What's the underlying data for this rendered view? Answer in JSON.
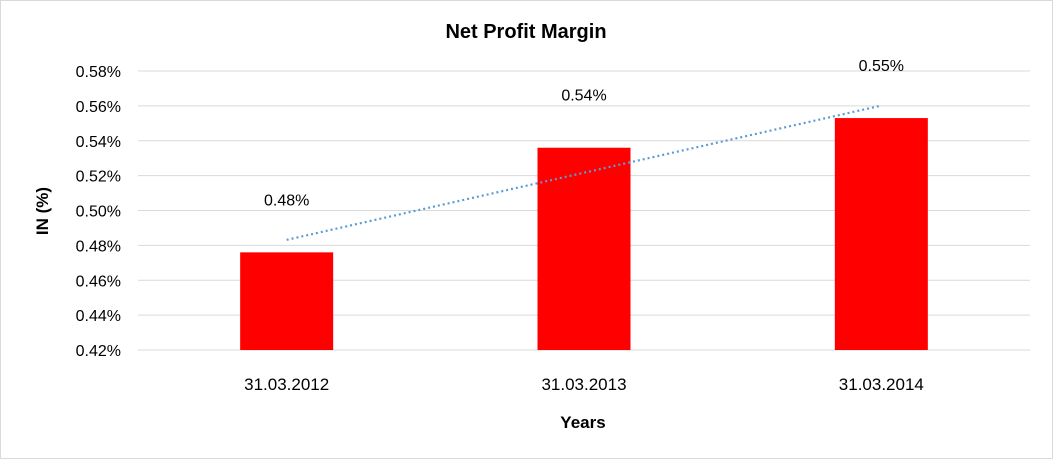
{
  "chart_data": {
    "type": "bar",
    "title": "Net Profit Margin",
    "xlabel": "Years",
    "ylabel": "IN (%)",
    "categories": [
      "31.03.2012",
      "31.03.2013",
      "31.03.2014"
    ],
    "series": [
      {
        "values": [
          0.476,
          0.536,
          0.553
        ],
        "data_labels": [
          "0.48%",
          "0.54%",
          "0.55%"
        ],
        "color": "#ff0000"
      }
    ],
    "yticks": [
      0.42,
      0.44,
      0.46,
      0.48,
      0.5,
      0.52,
      0.54,
      0.56,
      0.58
    ],
    "ytick_labels": [
      "0.42%",
      "0.44%",
      "0.46%",
      "0.48%",
      "0.50%",
      "0.52%",
      "0.54%",
      "0.56%",
      "0.58%"
    ],
    "ylim": [
      0.42,
      0.58
    ],
    "grid": true,
    "legend": "none",
    "trendline": {
      "type": "linear",
      "style": "dotted",
      "color": "#5b9bd5"
    }
  }
}
